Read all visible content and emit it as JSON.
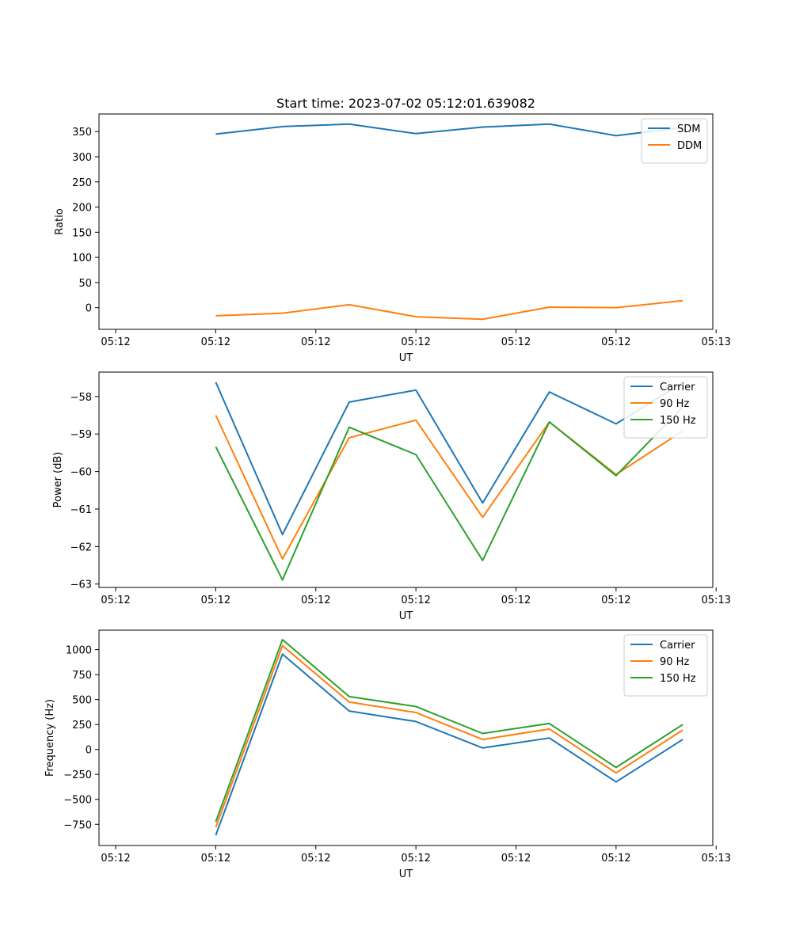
{
  "figure_title": "Start time: 2023-07-02 05:12:01.639082",
  "colors": {
    "blue": "#1f77b4",
    "orange": "#ff7f0e",
    "green": "#2ca02c"
  },
  "chart_data": [
    {
      "type": "line",
      "title": "Start time: 2023-07-02 05:12:01.639082",
      "xlabel": "UT",
      "ylabel": "Ratio",
      "x": [
        1,
        2,
        3,
        4,
        5,
        6,
        7,
        8
      ],
      "xlim": [
        -0.75,
        8.45
      ],
      "x_ticks": [
        -0.5,
        1,
        2.5,
        4,
        5.5,
        7,
        8.5
      ],
      "x_tick_labels": [
        "05:12",
        "05:12",
        "05:12",
        "05:12",
        "05:12",
        "05:12",
        "05:13"
      ],
      "ylim": [
        -43,
        385
      ],
      "y_ticks": [
        0,
        50,
        100,
        150,
        200,
        250,
        300,
        350
      ],
      "y_tick_labels": [
        "0",
        "50",
        "100",
        "150",
        "200",
        "250",
        "300",
        "350"
      ],
      "legend_position": "top-right",
      "series": [
        {
          "name": "SDM",
          "color": "#1f77b4",
          "values": [
            345,
            360,
            365,
            346,
            359,
            365,
            342,
            358
          ]
        },
        {
          "name": "DDM",
          "color": "#ff7f0e",
          "values": [
            -16,
            -11,
            6,
            -18,
            -23,
            1,
            0,
            14
          ]
        }
      ]
    },
    {
      "type": "line",
      "title": "",
      "xlabel": "UT",
      "ylabel": "Power (dB)",
      "x": [
        1,
        2,
        3,
        4,
        5,
        6,
        7,
        8
      ],
      "xlim": [
        -0.75,
        8.45
      ],
      "x_ticks": [
        -0.5,
        1,
        2.5,
        4,
        5.5,
        7,
        8.5
      ],
      "x_tick_labels": [
        "05:12",
        "05:12",
        "05:12",
        "05:12",
        "05:12",
        "05:12",
        "05:13"
      ],
      "ylim": [
        -63.09,
        -57.35
      ],
      "y_ticks": [
        -63,
        -62,
        -61,
        -60,
        -59,
        -58
      ],
      "y_tick_labels": [
        "−63",
        "−62",
        "−61",
        "−60",
        "−59",
        "−58"
      ],
      "legend_position": "top-right",
      "series": [
        {
          "name": "Carrier",
          "color": "#1f77b4",
          "values": [
            -57.62,
            -61.68,
            -58.15,
            -57.83,
            -60.84,
            -57.88,
            -58.73,
            -57.63
          ]
        },
        {
          "name": "90 Hz",
          "color": "#ff7f0e",
          "values": [
            -58.5,
            -62.33,
            -59.1,
            -58.63,
            -61.22,
            -58.68,
            -60.08,
            -58.92
          ]
        },
        {
          "name": "150 Hz",
          "color": "#2ca02c",
          "values": [
            -59.34,
            -62.89,
            -58.82,
            -59.55,
            -62.37,
            -58.68,
            -60.11,
            -58.28
          ]
        }
      ]
    },
    {
      "type": "line",
      "title": "",
      "xlabel": "UT",
      "ylabel": "Frequency (Hz)",
      "x": [
        1,
        2,
        3,
        4,
        5,
        6,
        7,
        8
      ],
      "xlim": [
        -0.75,
        8.45
      ],
      "x_ticks": [
        -0.5,
        1,
        2.5,
        4,
        5.5,
        7,
        8.5
      ],
      "x_tick_labels": [
        "05:12",
        "05:12",
        "05:12",
        "05:12",
        "05:12",
        "05:12",
        "05:13"
      ],
      "ylim": [
        -962,
        1195
      ],
      "y_ticks": [
        -750,
        -500,
        -250,
        0,
        250,
        500,
        750,
        1000
      ],
      "y_tick_labels": [
        "−750",
        "−500",
        "−250",
        "0",
        "250",
        "500",
        "750",
        "1000"
      ],
      "legend_position": "top-right",
      "series": [
        {
          "name": "Carrier",
          "color": "#1f77b4",
          "values": [
            -860,
            955,
            385,
            280,
            15,
            115,
            -325,
            100
          ]
        },
        {
          "name": "90 Hz",
          "color": "#ff7f0e",
          "values": [
            -780,
            1040,
            475,
            370,
            100,
            205,
            -235,
            195
          ]
        },
        {
          "name": "150 Hz",
          "color": "#2ca02c",
          "values": [
            -725,
            1100,
            530,
            430,
            160,
            260,
            -180,
            250
          ]
        }
      ]
    }
  ]
}
